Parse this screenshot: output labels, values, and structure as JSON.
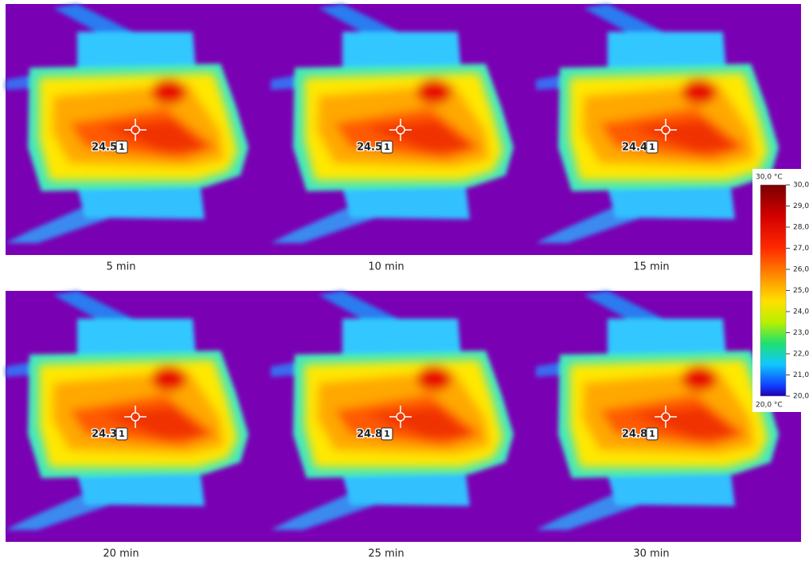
{
  "panels": [
    {
      "caption": "5 min",
      "spot_value": "24.5",
      "spot_id": "1"
    },
    {
      "caption": "10 min",
      "spot_value": "24.5",
      "spot_id": "1"
    },
    {
      "caption": "15 min",
      "spot_value": "24.4",
      "spot_id": "1"
    },
    {
      "caption": "20 min",
      "spot_value": "24.3",
      "spot_id": "1"
    },
    {
      "caption": "25 min",
      "spot_value": "24.8",
      "spot_id": "1"
    },
    {
      "caption": "30 min",
      "spot_value": "24.8",
      "spot_id": "1"
    }
  ],
  "colorbar": {
    "max_label": "30,0 °C",
    "min_label": "20,0 °C",
    "ticks": [
      "30,0",
      "29,0",
      "28,0",
      "27,0",
      "26,0",
      "25,0",
      "24,0",
      "23,0",
      "22,0",
      "21,0",
      "20,0"
    ]
  }
}
